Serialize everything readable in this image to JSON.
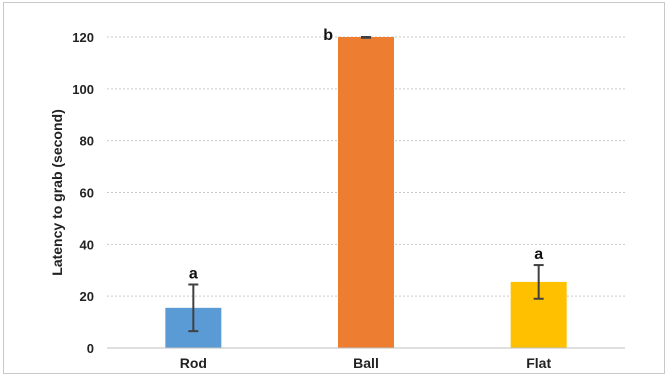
{
  "chart_data": {
    "type": "bar",
    "title": "",
    "xlabel": "",
    "ylabel": "Latency to grab (second)",
    "ylim": [
      0,
      120
    ],
    "yticks": [
      0,
      20,
      40,
      60,
      80,
      100,
      120
    ],
    "grid": true,
    "grid_style": "dotted",
    "categories": [
      "Rod",
      "Ball",
      "Flat"
    ],
    "values": [
      15.5,
      120,
      25.5
    ],
    "error": [
      9,
      0.3,
      6.5
    ],
    "significance": [
      "a",
      "b",
      "a"
    ],
    "colors": [
      "#5B9BD5",
      "#ED7D31",
      "#FFC000"
    ]
  }
}
